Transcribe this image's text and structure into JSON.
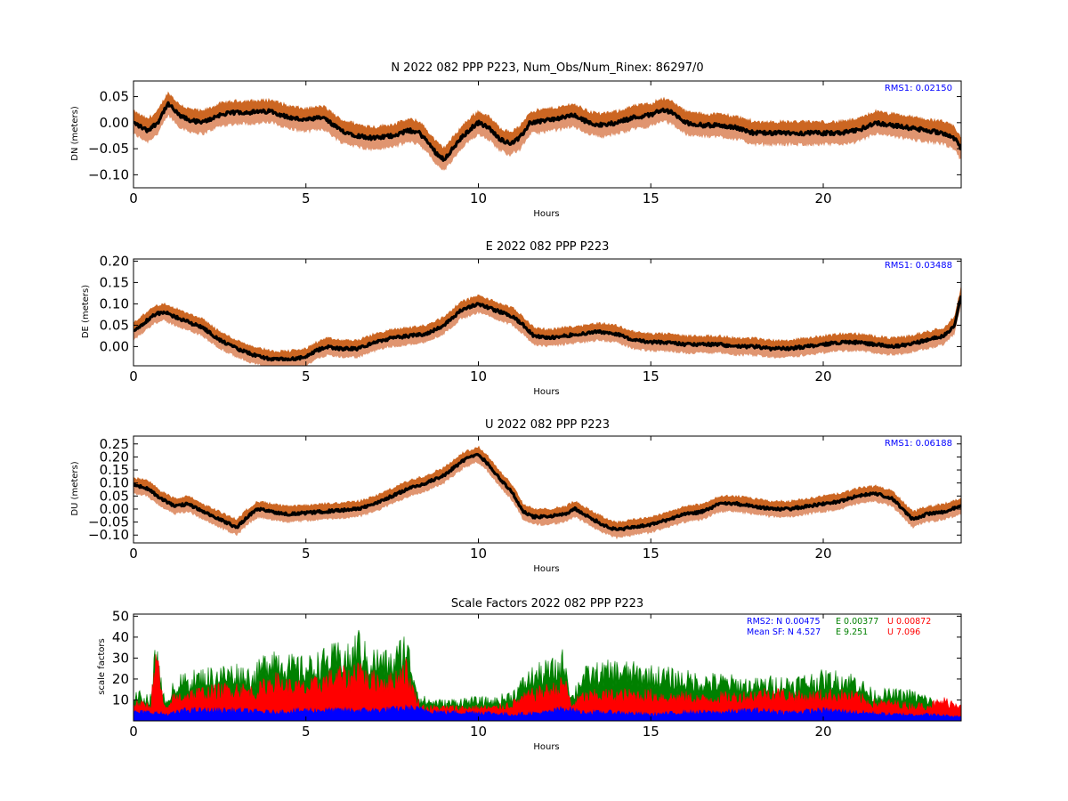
{
  "chart_data": [
    {
      "type": "line",
      "title": "N 2022 082 PPP  P223, Num_Obs/Num_Rinex: 86297/0",
      "xlabel": "Hours",
      "ylabel": "DN (meters)",
      "xlim": [
        0,
        24
      ],
      "ylim": [
        -0.125,
        0.08
      ],
      "xticks": [
        "0",
        "5",
        "10",
        "15",
        "20"
      ],
      "yticks": [
        "0.05",
        "0.00",
        "−0.05",
        "−0.10"
      ],
      "ytick_values": [
        0.05,
        0.0,
        -0.05,
        -0.1
      ],
      "annotation": "RMS1:  0.02150",
      "grid": false,
      "series": [
        {
          "x": [
            0,
            0.4,
            0.7,
            0.9,
            1.0,
            1.1,
            1.3,
            1.6,
            2.0,
            2.5,
            3.0,
            3.5,
            4.0,
            4.5,
            5.0,
            5.5,
            6.0,
            6.5,
            7.0,
            7.5,
            8.0,
            8.3,
            8.5,
            8.8,
            9.0,
            9.2,
            9.5,
            9.8,
            10.0,
            10.3,
            10.6,
            10.9,
            11.2,
            11.5,
            12.0,
            12.5,
            12.7,
            12.9,
            13.2,
            13.6,
            14.0,
            14.5,
            15.0,
            15.3,
            15.6,
            16.0,
            16.5,
            17.0,
            17.5,
            18.0,
            18.5,
            19.0,
            19.5,
            20.0,
            20.5,
            21.0,
            21.5,
            22.0,
            22.5,
            23.0,
            23.5,
            23.8,
            24.0
          ],
          "values": [
            0.0,
            -0.015,
            0.0,
            0.025,
            0.035,
            0.03,
            0.015,
            0.005,
            0.0,
            0.015,
            0.02,
            0.02,
            0.022,
            0.01,
            0.005,
            0.01,
            -0.015,
            -0.025,
            -0.03,
            -0.025,
            -0.015,
            -0.02,
            -0.035,
            -0.06,
            -0.07,
            -0.055,
            -0.03,
            -0.01,
            0.0,
            -0.01,
            -0.03,
            -0.04,
            -0.03,
            0.0,
            0.005,
            0.01,
            0.015,
            0.01,
            0.0,
            -0.005,
            0.0,
            0.01,
            0.015,
            0.025,
            0.02,
            0.0,
            -0.005,
            -0.005,
            -0.01,
            -0.02,
            -0.02,
            -0.02,
            -0.02,
            -0.02,
            -0.02,
            -0.015,
            0.0,
            -0.005,
            -0.01,
            -0.015,
            -0.02,
            -0.03,
            -0.05
          ],
          "band": 0.022
        }
      ]
    },
    {
      "type": "line",
      "title": "E 2022 082 PPP  P223",
      "xlabel": "Hours",
      "ylabel": "DE (meters)",
      "xlim": [
        0,
        24
      ],
      "ylim": [
        -0.045,
        0.205
      ],
      "xticks": [
        "0",
        "5",
        "10",
        "15",
        "20"
      ],
      "yticks": [
        "0.20",
        "0.15",
        "0.10",
        "0.05",
        "0.00"
      ],
      "ytick_values": [
        0.2,
        0.15,
        0.1,
        0.05,
        0.0
      ],
      "annotation": "RMS1:  0.03488",
      "grid": false,
      "series": [
        {
          "x": [
            0,
            0.3,
            0.6,
            0.9,
            1.2,
            1.5,
            2.0,
            2.5,
            3.0,
            3.5,
            4.0,
            4.5,
            5.0,
            5.3,
            5.6,
            6.0,
            6.5,
            7.0,
            7.5,
            8.0,
            8.5,
            9.0,
            9.5,
            10.0,
            10.5,
            11.0,
            11.3,
            11.6,
            12.0,
            12.5,
            13.0,
            13.5,
            14.0,
            14.5,
            15.0,
            15.5,
            16.0,
            16.5,
            17.0,
            17.5,
            18.0,
            18.5,
            19.0,
            19.5,
            20.0,
            20.5,
            21.0,
            21.5,
            22.0,
            22.5,
            23.0,
            23.5,
            23.8,
            24.0
          ],
          "values": [
            0.035,
            0.055,
            0.075,
            0.08,
            0.07,
            0.06,
            0.045,
            0.015,
            -0.005,
            -0.02,
            -0.03,
            -0.03,
            -0.025,
            -0.01,
            0.0,
            -0.005,
            -0.005,
            0.01,
            0.02,
            0.025,
            0.03,
            0.05,
            0.085,
            0.1,
            0.085,
            0.07,
            0.05,
            0.025,
            0.02,
            0.025,
            0.03,
            0.035,
            0.03,
            0.015,
            0.01,
            0.01,
            0.005,
            0.005,
            0.005,
            0.0,
            0.0,
            -0.005,
            -0.005,
            0.0,
            0.005,
            0.01,
            0.01,
            0.005,
            0.0,
            0.005,
            0.015,
            0.025,
            0.05,
            0.12
          ],
          "band": 0.02
        }
      ]
    },
    {
      "type": "line",
      "title": "U 2022 082 PPP  P223",
      "xlabel": "Hours",
      "ylabel": "DU (meters)",
      "xlim": [
        0,
        24
      ],
      "ylim": [
        -0.13,
        0.28
      ],
      "xticks": [
        "0",
        "5",
        "10",
        "15",
        "20"
      ],
      "yticks": [
        "0.25",
        "0.20",
        "0.15",
        "0.10",
        "0.05",
        "0.00",
        "−0.05",
        "−0.10"
      ],
      "ytick_values": [
        0.25,
        0.2,
        0.15,
        0.1,
        0.05,
        0.0,
        -0.05,
        -0.1
      ],
      "annotation": "RMS1:  0.06188",
      "grid": false,
      "series": [
        {
          "x": [
            0,
            0.4,
            0.8,
            1.2,
            1.6,
            2.0,
            2.5,
            3.0,
            3.3,
            3.6,
            4.0,
            4.5,
            5.0,
            5.5,
            6.0,
            6.5,
            7.0,
            7.5,
            8.0,
            8.5,
            9.0,
            9.3,
            9.6,
            10.0,
            10.3,
            10.6,
            11.0,
            11.3,
            11.6,
            12.0,
            12.5,
            12.8,
            13.2,
            13.6,
            14.0,
            14.5,
            15.0,
            15.5,
            16.0,
            16.5,
            17.0,
            17.5,
            18.0,
            18.5,
            19.0,
            19.5,
            20.0,
            20.5,
            21.0,
            21.5,
            22.0,
            22.3,
            22.6,
            23.0,
            23.5,
            24.0
          ],
          "values": [
            0.09,
            0.08,
            0.04,
            0.01,
            0.02,
            -0.01,
            -0.04,
            -0.07,
            -0.03,
            0.0,
            -0.01,
            -0.02,
            -0.015,
            -0.01,
            -0.005,
            0.0,
            0.02,
            0.05,
            0.08,
            0.1,
            0.13,
            0.16,
            0.19,
            0.21,
            0.17,
            0.12,
            0.06,
            -0.01,
            -0.03,
            -0.03,
            -0.02,
            0.0,
            -0.03,
            -0.06,
            -0.08,
            -0.07,
            -0.06,
            -0.04,
            -0.02,
            -0.01,
            0.02,
            0.02,
            0.01,
            0.0,
            0.0,
            0.01,
            0.02,
            0.03,
            0.05,
            0.06,
            0.04,
            0.0,
            -0.04,
            -0.02,
            -0.01,
            0.01
          ],
          "band": 0.03
        }
      ]
    },
    {
      "type": "area",
      "title": "Scale Factors 2022 082 PPP  P223",
      "xlabel": "Hours",
      "ylabel": "scale factors",
      "xlim": [
        0,
        24
      ],
      "ylim": [
        0,
        51
      ],
      "xticks": [
        "0",
        "5",
        "10",
        "15",
        "20"
      ],
      "yticks": [
        "50",
        "40",
        "30",
        "20",
        "10"
      ],
      "ytick_values": [
        50,
        40,
        30,
        20,
        10
      ],
      "grid": false,
      "annotations": [
        {
          "text": "RMS2: N  0.00475",
          "color": "#0000ff"
        },
        {
          "text": "E  0.00377",
          "color": "#008000"
        },
        {
          "text": "U  0.00872",
          "color": "#ff0000"
        },
        {
          "text": "Mean SF: N   4.527",
          "color": "#0000ff"
        },
        {
          "text": "E   9.251",
          "color": "#008000"
        },
        {
          "text": "U   7.096",
          "color": "#ff0000"
        }
      ],
      "series": [
        {
          "name": "E",
          "x": [
            0,
            0.5,
            0.6,
            0.7,
            0.8,
            0.9,
            1.0,
            1.1,
            1.5,
            2.0,
            2.5,
            3.0,
            3.5,
            3.9,
            4.0,
            4.5,
            5.0,
            5.5,
            6.0,
            6.3,
            6.5,
            6.8,
            7.0,
            7.5,
            7.9,
            8.0,
            8.3,
            8.5,
            9.0,
            9.5,
            10.0,
            10.5,
            11.0,
            11.5,
            12.0,
            12.3,
            12.5,
            12.7,
            13.0,
            13.5,
            14.0,
            14.5,
            15.0,
            15.5,
            16.0,
            16.5,
            17.0,
            17.5,
            18.0,
            18.5,
            19.0,
            19.5,
            20.0,
            20.5,
            21.0,
            21.3,
            21.5,
            22.0,
            22.5,
            23.0,
            23.5,
            24.0
          ],
          "values": [
            12,
            10,
            26,
            30,
            20,
            8,
            7,
            16,
            18,
            20,
            21,
            22,
            20,
            28,
            30,
            25,
            24,
            27,
            30,
            28,
            36,
            27,
            28,
            26,
            35,
            28,
            10,
            9,
            8,
            9,
            9,
            9,
            12,
            20,
            23,
            24,
            28,
            10,
            20,
            22,
            23,
            22,
            21,
            20,
            19,
            18,
            18,
            17,
            16,
            17,
            17,
            18,
            19,
            19,
            18,
            13,
            12,
            12,
            12,
            10,
            6,
            3
          ]
        },
        {
          "name": "U",
          "x": [
            0,
            0.5,
            0.6,
            0.7,
            0.8,
            0.9,
            1.0,
            1.1,
            1.5,
            2.0,
            2.5,
            3.0,
            3.5,
            3.9,
            4.0,
            4.5,
            5.0,
            5.5,
            6.0,
            6.3,
            6.5,
            6.8,
            7.0,
            7.5,
            7.9,
            8.0,
            8.3,
            8.5,
            9.0,
            9.5,
            10.0,
            10.5,
            11.0,
            11.5,
            12.0,
            12.3,
            12.5,
            12.7,
            13.0,
            13.5,
            14.0,
            14.5,
            15.0,
            15.5,
            16.0,
            16.5,
            17.0,
            17.5,
            18.0,
            18.5,
            19.0,
            19.5,
            20.0,
            20.5,
            21.0,
            21.3,
            21.5,
            22.0,
            22.5,
            23.0,
            23.5,
            24.0
          ],
          "values": [
            8,
            7,
            24,
            27,
            14,
            6,
            5,
            10,
            12,
            13,
            14,
            15,
            13,
            17,
            19,
            16,
            15,
            18,
            21,
            19,
            26,
            18,
            19,
            18,
            24,
            18,
            7,
            6,
            6,
            6,
            6,
            6,
            8,
            12,
            14,
            15,
            18,
            7,
            11,
            12,
            12,
            12,
            12,
            11,
            11,
            10,
            11,
            11,
            12,
            13,
            12,
            11,
            12,
            12,
            11,
            9,
            8,
            8,
            7,
            7,
            9,
            8
          ]
        },
        {
          "name": "N",
          "x": [
            0,
            0.5,
            1.0,
            1.5,
            2.0,
            3.0,
            4.0,
            5.0,
            6.0,
            7.0,
            8.0,
            9.0,
            10.0,
            11.0,
            12.0,
            12.5,
            13.0,
            14.0,
            15.0,
            16.0,
            17.0,
            18.0,
            19.0,
            20.0,
            21.0,
            22.0,
            23.0,
            24.0
          ],
          "values": [
            4,
            4,
            3,
            5,
            5,
            5,
            4,
            5,
            5,
            5,
            6,
            4,
            4,
            3,
            4,
            6,
            4,
            4,
            3,
            4,
            4,
            5,
            4,
            5,
            4,
            3,
            3,
            2
          ]
        }
      ]
    }
  ],
  "colors": {
    "band_dark": "#cc6622",
    "band_light": "#e09570",
    "line": "#000000",
    "rms": "#0000ff",
    "N": "#0000ff",
    "E": "#008000",
    "U": "#ff0000"
  }
}
